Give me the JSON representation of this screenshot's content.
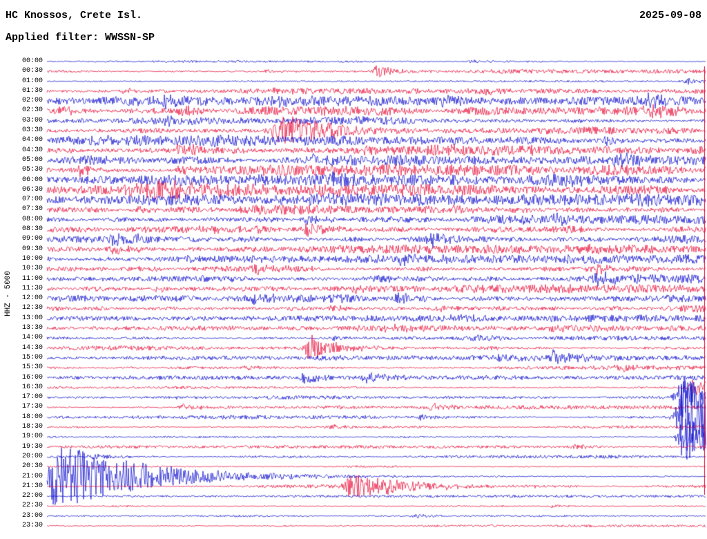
{
  "header": {
    "station": "HC Knossos, Crete Isl.",
    "date": "2025-09-08",
    "filter_label": "Applied filter: WWSSN-SP"
  },
  "y_axis_label": "HHZ - 5000",
  "colors": {
    "trace_blue": "#0000cc",
    "trace_red": "#e6002e",
    "text": "#000000",
    "background": "#ffffff"
  },
  "chart_data": {
    "type": "line",
    "subtype": "helicorder-day-plot",
    "title": "HC Knossos, Crete Isl. 2025-09-08",
    "channel": "HHZ",
    "scale": 5000,
    "filter": "WWSSN-SP",
    "row_duration_minutes": 30,
    "x_range_minutes": [
      0,
      30
    ],
    "right_edge_marker": true,
    "rows": [
      {
        "time": "00:00",
        "color": "blue",
        "amp": 0.8,
        "events": [
          {
            "m": 19.3,
            "a": 2.5
          }
        ]
      },
      {
        "time": "00:30",
        "color": "red",
        "amp": 1.8,
        "events": [
          {
            "m": 10,
            "a": 3
          },
          {
            "m": 15,
            "a": 9,
            "decay": 0.6
          }
        ]
      },
      {
        "time": "01:00",
        "color": "blue",
        "amp": 0.7,
        "events": [
          {
            "m": 29.2,
            "a": 5,
            "decay": 0.3
          }
        ]
      },
      {
        "time": "01:30",
        "color": "red",
        "amp": 2.2,
        "events": [
          {
            "m": 3.5,
            "a": 3
          },
          {
            "m": 10.3,
            "a": 4
          },
          {
            "m": 20,
            "a": 3.5
          }
        ]
      },
      {
        "time": "02:00",
        "color": "blue",
        "amp": 3.5,
        "events": [
          {
            "m": 0.5,
            "a": 5
          },
          {
            "m": 5.2,
            "a": 7
          },
          {
            "m": 10.2,
            "a": 6
          },
          {
            "m": 18,
            "a": 5
          },
          {
            "m": 27.4,
            "a": 7
          }
        ]
      },
      {
        "time": "02:30",
        "color": "red",
        "amp": 3.5,
        "events": [
          {
            "m": 0.5,
            "a": 6
          },
          {
            "m": 6,
            "a": 8
          },
          {
            "m": 27.5,
            "a": 7
          }
        ]
      },
      {
        "time": "03:00",
        "color": "blue",
        "amp": 2.8,
        "events": [
          {
            "m": 5.5,
            "a": 4
          },
          {
            "m": 14,
            "a": 3
          }
        ]
      },
      {
        "time": "03:30",
        "color": "red",
        "amp": 2.8,
        "events": [
          {
            "m": 10.4,
            "a": 26,
            "decay": 1.5
          }
        ]
      },
      {
        "time": "04:00",
        "color": "blue",
        "amp": 3.8,
        "events": [
          {
            "m": 7.5,
            "a": 6
          },
          {
            "m": 25.5,
            "a": 8
          }
        ]
      },
      {
        "time": "04:30",
        "color": "red",
        "amp": 4,
        "events": [
          {
            "m": 6,
            "a": 11,
            "decay": 0.8
          },
          {
            "m": 17.5,
            "a": 6
          }
        ]
      },
      {
        "time": "05:00",
        "color": "blue",
        "amp": 4,
        "events": [
          {
            "m": 12,
            "a": 6
          },
          {
            "m": 26,
            "a": 9
          }
        ]
      },
      {
        "time": "05:30",
        "color": "red",
        "amp": 4,
        "events": [
          {
            "m": 1.5,
            "a": 7
          },
          {
            "m": 6,
            "a": 7
          }
        ]
      },
      {
        "time": "06:00",
        "color": "blue",
        "amp": 4.2,
        "events": [
          {
            "m": 13,
            "a": 6
          },
          {
            "m": 23,
            "a": 9,
            "decay": 0.8
          }
        ]
      },
      {
        "time": "06:30",
        "color": "red",
        "amp": 4.2,
        "events": [
          {
            "m": 4.6,
            "a": 11,
            "decay": 2,
            "rise": 25
          },
          {
            "m": 12.5,
            "a": 7
          }
        ]
      },
      {
        "time": "07:00",
        "color": "blue",
        "amp": 4.2,
        "events": [
          {
            "m": 12,
            "a": 7
          },
          {
            "m": 26.5,
            "a": 7
          }
        ]
      },
      {
        "time": "07:30",
        "color": "red",
        "amp": 3.6,
        "events": [
          {
            "m": 4,
            "a": 6
          },
          {
            "m": 18.5,
            "a": 7
          }
        ]
      },
      {
        "time": "08:00",
        "color": "blue",
        "amp": 3.6,
        "events": [
          {
            "m": 11.8,
            "a": 8
          },
          {
            "m": 23,
            "a": 7
          }
        ]
      },
      {
        "time": "08:30",
        "color": "red",
        "amp": 3.6,
        "events": [
          {
            "m": 7,
            "a": 6
          },
          {
            "m": 11.8,
            "a": 9
          }
        ]
      },
      {
        "time": "09:00",
        "color": "blue",
        "amp": 3.8,
        "events": [
          {
            "m": 3,
            "a": 7
          },
          {
            "m": 17.5,
            "a": 9
          }
        ]
      },
      {
        "time": "09:30",
        "color": "red",
        "amp": 3.2,
        "events": [
          {
            "m": 3,
            "a": 6
          },
          {
            "m": 24.5,
            "a": 5
          }
        ]
      },
      {
        "time": "10:00",
        "color": "blue",
        "amp": 3.6,
        "events": [
          {
            "m": 9.5,
            "a": 6
          },
          {
            "m": 16,
            "a": 7
          }
        ]
      },
      {
        "time": "10:30",
        "color": "red",
        "amp": 3.6,
        "events": [
          {
            "m": 9.5,
            "a": 8
          },
          {
            "m": 25,
            "a": 8
          }
        ]
      },
      {
        "time": "11:00",
        "color": "blue",
        "amp": 3.8,
        "events": [
          {
            "m": 15,
            "a": 6
          },
          {
            "m": 25,
            "a": 9,
            "decay": 0.8
          }
        ]
      },
      {
        "time": "11:30",
        "color": "red",
        "amp": 3.2,
        "events": [
          {
            "m": 5,
            "a": 5
          },
          {
            "m": 14,
            "a": 6
          }
        ]
      },
      {
        "time": "12:00",
        "color": "blue",
        "amp": 3.6,
        "events": [
          {
            "m": 9.5,
            "a": 7
          },
          {
            "m": 16,
            "a": 7
          }
        ]
      },
      {
        "time": "12:30",
        "color": "red",
        "amp": 3.2,
        "events": [
          {
            "m": 13,
            "a": 5
          },
          {
            "m": 18,
            "a": 5
          }
        ]
      },
      {
        "time": "13:00",
        "color": "blue",
        "amp": 2.6,
        "events": [
          {
            "m": 18.5,
            "a": 6
          },
          {
            "m": 23,
            "a": 5
          }
        ]
      },
      {
        "time": "13:30",
        "color": "red",
        "amp": 2.2,
        "events": [
          {
            "m": 15.5,
            "a": 5
          },
          {
            "m": 23,
            "a": 6
          }
        ]
      },
      {
        "time": "14:00",
        "color": "blue",
        "amp": 1.8,
        "events": [
          {
            "m": 13,
            "a": 4
          },
          {
            "m": 19.5,
            "a": 5
          }
        ]
      },
      {
        "time": "14:30",
        "color": "red",
        "amp": 1.8,
        "events": [
          {
            "m": 11.9,
            "a": 20,
            "decay": 0.6
          }
        ]
      },
      {
        "time": "15:00",
        "color": "blue",
        "amp": 1.8,
        "events": [
          {
            "m": 20.5,
            "a": 7
          },
          {
            "m": 23,
            "a": 11,
            "decay": 0.6
          }
        ]
      },
      {
        "time": "15:30",
        "color": "red",
        "amp": 1.8,
        "events": [
          {
            "m": 9,
            "a": 4
          },
          {
            "m": 26,
            "a": 5
          }
        ]
      },
      {
        "time": "16:00",
        "color": "blue",
        "amp": 1.6,
        "events": [
          {
            "m": 11.7,
            "a": 8,
            "decay": 0.5
          },
          {
            "m": 14.5,
            "a": 7,
            "decay": 0.5
          }
        ]
      },
      {
        "time": "16:30",
        "color": "red",
        "amp": 1.4,
        "events": [
          {
            "m": 29.4,
            "a": 13,
            "decay": 0.6
          }
        ]
      },
      {
        "time": "17:00",
        "color": "blue",
        "amp": 1.4,
        "events": [
          {
            "m": 6,
            "a": 3
          },
          {
            "m": 28.8,
            "a": 32,
            "decay": 0.8
          }
        ]
      },
      {
        "time": "17:30",
        "color": "red",
        "amp": 1.4,
        "events": [
          {
            "m": 6.2,
            "a": 5
          },
          {
            "m": 17.5,
            "a": 5
          }
        ]
      },
      {
        "time": "18:00",
        "color": "blue",
        "amp": 1.4,
        "events": [
          {
            "m": 17,
            "a": 4
          },
          {
            "m": 28.9,
            "a": 72,
            "decay": 1.0
          }
        ]
      },
      {
        "time": "18:30",
        "color": "red",
        "amp": 1.2,
        "events": [
          {
            "m": 13,
            "a": 3
          }
        ]
      },
      {
        "time": "19:00",
        "color": "blue",
        "amp": 1.2,
        "events": [
          {
            "m": 28.9,
            "a": 30,
            "decay": 1.2
          }
        ]
      },
      {
        "time": "19:30",
        "color": "red",
        "amp": 1.2,
        "events": [
          {
            "m": 24,
            "a": 4
          }
        ]
      },
      {
        "time": "20:00",
        "color": "blue",
        "amp": 1.2,
        "events": [
          {
            "m": 2,
            "a": 4
          }
        ]
      },
      {
        "time": "20:30",
        "color": "red",
        "amp": 1.2,
        "events": []
      },
      {
        "time": "21:00",
        "color": "blue",
        "amp": 1.2,
        "events": [
          {
            "m": 0.25,
            "a": 52,
            "decay": 2.2
          }
        ]
      },
      {
        "time": "21:30",
        "color": "red",
        "amp": 1.4,
        "events": [
          {
            "m": 13.8,
            "a": 22,
            "decay": 1.2
          }
        ]
      },
      {
        "time": "22:00",
        "color": "blue",
        "amp": 0.9,
        "events": []
      },
      {
        "time": "22:30",
        "color": "red",
        "amp": 0.9,
        "events": [
          {
            "m": 23,
            "a": 3
          }
        ]
      },
      {
        "time": "23:00",
        "color": "blue",
        "amp": 0.9,
        "events": [
          {
            "m": 16.8,
            "a": 4,
            "decay": 0.4
          }
        ]
      },
      {
        "time": "23:30",
        "color": "red",
        "amp": 0.9,
        "events": []
      }
    ]
  }
}
